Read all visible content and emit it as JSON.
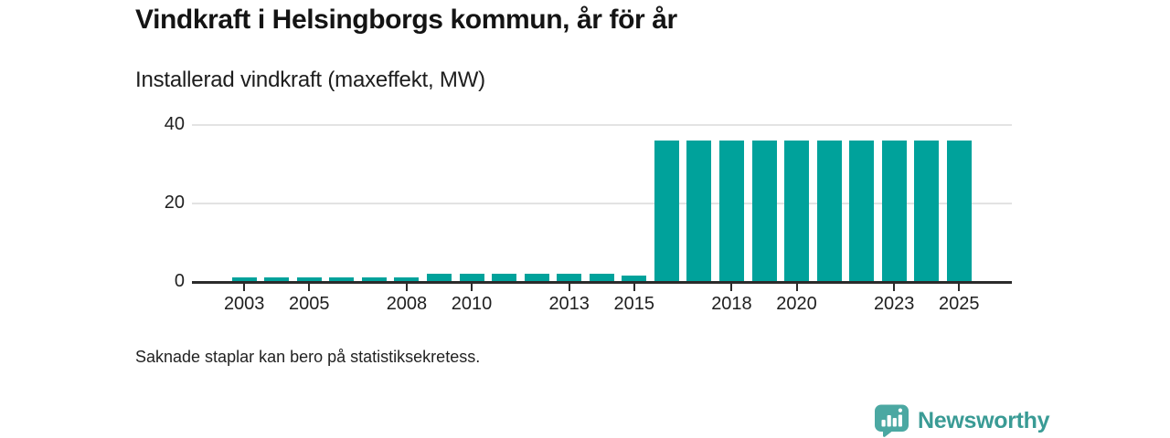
{
  "title": "Vindkraft i Helsingborgs kommun, år för år",
  "subtitle": "Installerad vindkraft (maxeffekt, MW)",
  "footnote": "Saknade staplar kan bero på statistiksekretess.",
  "branding": {
    "name": "Newsworthy",
    "icon": "bar-chart-speech-bubble-icon",
    "text_color": "#3a9b95",
    "icon_color": "#4ba8a2"
  },
  "colors": {
    "bar": "#00a29b",
    "axis": "#2b2b2b",
    "gridline": "#e3e3e3",
    "background": "#ffffff",
    "text": "#1f1f1f"
  },
  "chart_data": {
    "type": "bar",
    "title": "Vindkraft i Helsingborgs kommun, år för år",
    "subtitle": "Installerad vindkraft (maxeffekt, MW)",
    "x": [
      2003,
      2004,
      2005,
      2006,
      2007,
      2008,
      2009,
      2010,
      2011,
      2012,
      2013,
      2014,
      2015,
      2016,
      2017,
      2018,
      2019,
      2020,
      2021,
      2022,
      2023,
      2024,
      2025
    ],
    "values": [
      1.2,
      1.2,
      1.2,
      1.2,
      1.2,
      1.2,
      2,
      2,
      2,
      2,
      2,
      2,
      1.6,
      36,
      36,
      36,
      36,
      36,
      36,
      36,
      36,
      36,
      36
    ],
    "series_name": "Installerad vindkraft (maxeffekt, MW)",
    "x_tick_labels": [
      "2003",
      "2005",
      "2008",
      "2010",
      "2013",
      "2015",
      "2018",
      "2020",
      "2023",
      "2025"
    ],
    "y_ticks": [
      0,
      20,
      40
    ],
    "ylim": [
      0,
      43
    ],
    "xlabel": "",
    "ylabel": "",
    "grid": "horizontal",
    "legend": "none"
  }
}
